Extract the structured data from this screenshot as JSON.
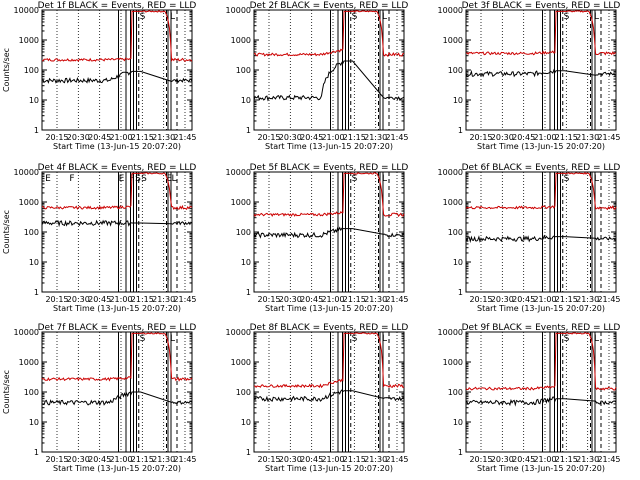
{
  "chart_data": [
    {
      "type": "line",
      "title": "Det 1f BLACK = Events, RED = LLD",
      "xlabel": "Start Time (13-Jun-15 20:07:20)",
      "ylabel": "Counts/sec",
      "y_scale": "log",
      "ylim": [
        1,
        10000
      ],
      "x_ticks": [
        "20:15",
        "20:30",
        "20:45",
        "21:00",
        "21:15",
        "21:30",
        "21:45"
      ],
      "y_ticks": [
        "1",
        "10",
        "100",
        "1000",
        "10000"
      ],
      "band_letters": [
        "S",
        "L"
      ],
      "series": [
        {
          "color": "#000000",
          "level": 45,
          "rise_level": 90
        },
        {
          "color": "#cc0000",
          "level": 220,
          "rise_level": 230
        }
      ]
    },
    {
      "type": "line",
      "title": "Det 2f BLACK = Events, RED = LLD",
      "xlabel": "Start Time (13-Jun-15 20:07:20)",
      "ylabel": "",
      "y_scale": "log",
      "ylim": [
        1,
        10000
      ],
      "x_ticks": [
        "20:15",
        "20:30",
        "20:45",
        "21:00",
        "21:15",
        "21:30",
        "21:45"
      ],
      "y_ticks": [
        "1",
        "10",
        "100",
        "1000",
        "10000"
      ],
      "band_letters": [
        "S",
        "L"
      ],
      "series": [
        {
          "color": "#000000",
          "level": 12,
          "rise_level": 200
        },
        {
          "color": "#cc0000",
          "level": 330,
          "rise_level": 480
        }
      ]
    },
    {
      "type": "line",
      "title": "Det 3f BLACK = Events, RED = LLD",
      "xlabel": "Start Time (13-Jun-15 20:07:20)",
      "ylabel": "",
      "y_scale": "log",
      "ylim": [
        1,
        10000
      ],
      "x_ticks": [
        "20:15",
        "20:30",
        "20:45",
        "21:00",
        "21:15",
        "21:30",
        "21:45"
      ],
      "y_ticks": [
        "1",
        "10",
        "100",
        "1000",
        "10000"
      ],
      "band_letters": [
        "S",
        "L"
      ],
      "series": [
        {
          "color": "#000000",
          "level": 75,
          "rise_level": 95
        },
        {
          "color": "#cc0000",
          "level": 360,
          "rise_level": 400
        }
      ]
    },
    {
      "type": "line",
      "title": "Det 4f BLACK = Events, RED = LLD",
      "xlabel": "Start Time (13-Jun-15 20:07:20)",
      "ylabel": "Counts/sec",
      "y_scale": "log",
      "ylim": [
        1,
        10000
      ],
      "x_ticks": [
        "20:15",
        "20:30",
        "20:45",
        "21:00",
        "21:15",
        "21:30",
        "21:45"
      ],
      "y_ticks": [
        "1",
        "10",
        "100",
        "1000",
        "10000"
      ],
      "band_letters": [
        "E",
        "F",
        "E",
        "F",
        "S",
        "S",
        "E",
        "L"
      ],
      "series": [
        {
          "color": "#000000",
          "level": 200,
          "rise_level": 200
        },
        {
          "color": "#cc0000",
          "level": 650,
          "rise_level": 700
        }
      ]
    },
    {
      "type": "line",
      "title": "Det 5f BLACK = Events, RED = LLD",
      "xlabel": "Start Time (13-Jun-15 20:07:20)",
      "ylabel": "",
      "y_scale": "log",
      "ylim": [
        1,
        10000
      ],
      "x_ticks": [
        "20:15",
        "20:30",
        "20:45",
        "21:00",
        "21:15",
        "21:30",
        "21:45"
      ],
      "y_ticks": [
        "1",
        "10",
        "100",
        "1000",
        "10000"
      ],
      "band_letters": [
        "S",
        "L"
      ],
      "series": [
        {
          "color": "#000000",
          "level": 80,
          "rise_level": 130
        },
        {
          "color": "#cc0000",
          "level": 380,
          "rise_level": 450
        }
      ]
    },
    {
      "type": "line",
      "title": "Det 6f BLACK = Events, RED = LLD",
      "xlabel": "Start Time (13-Jun-15 20:07:20)",
      "ylabel": "",
      "y_scale": "log",
      "ylim": [
        1,
        10000
      ],
      "x_ticks": [
        "20:15",
        "20:30",
        "20:45",
        "21:00",
        "21:15",
        "21:30",
        "21:45"
      ],
      "y_ticks": [
        "1",
        "10",
        "100",
        "1000",
        "10000"
      ],
      "band_letters": [
        "S",
        "L"
      ],
      "series": [
        {
          "color": "#000000",
          "level": 60,
          "rise_level": 70
        },
        {
          "color": "#cc0000",
          "level": 650,
          "rise_level": 700
        }
      ]
    },
    {
      "type": "line",
      "title": "Det 7f BLACK = Events, RED = LLD",
      "xlabel": "Start Time (13-Jun-15 20:07:20)",
      "ylabel": "Counts/sec",
      "y_scale": "log",
      "ylim": [
        1,
        10000
      ],
      "x_ticks": [
        "20:15",
        "20:30",
        "20:45",
        "21:00",
        "21:15",
        "21:30",
        "21:45"
      ],
      "y_ticks": [
        "1",
        "10",
        "100",
        "1000",
        "10000"
      ],
      "band_letters": [
        "S",
        "L"
      ],
      "series": [
        {
          "color": "#000000",
          "level": 45,
          "rise_level": 100
        },
        {
          "color": "#cc0000",
          "level": 270,
          "rise_level": 300
        }
      ]
    },
    {
      "type": "line",
      "title": "Det 8f BLACK = Events, RED = LLD",
      "xlabel": "Start Time (13-Jun-15 20:07:20)",
      "ylabel": "",
      "y_scale": "log",
      "ylim": [
        1,
        10000
      ],
      "x_ticks": [
        "20:15",
        "20:30",
        "20:45",
        "21:00",
        "21:15",
        "21:30",
        "21:45"
      ],
      "y_ticks": [
        "1",
        "10",
        "100",
        "1000",
        "10000"
      ],
      "band_letters": [
        "S",
        "L"
      ],
      "series": [
        {
          "color": "#000000",
          "level": 60,
          "rise_level": 110
        },
        {
          "color": "#cc0000",
          "level": 160,
          "rise_level": 260
        }
      ]
    },
    {
      "type": "line",
      "title": "Det 9f BLACK = Events, RED = LLD",
      "xlabel": "Start Time (13-Jun-15 20:07:20)",
      "ylabel": "",
      "y_scale": "log",
      "ylim": [
        1,
        10000
      ],
      "x_ticks": [
        "20:15",
        "20:30",
        "20:45",
        "21:00",
        "21:15",
        "21:30",
        "21:45"
      ],
      "y_ticks": [
        "1",
        "10",
        "100",
        "1000",
        "10000"
      ],
      "band_letters": [
        "S",
        "L"
      ],
      "series": [
        {
          "color": "#000000",
          "level": 45,
          "rise_level": 60
        },
        {
          "color": "#cc0000",
          "level": 130,
          "rise_level": 150
        }
      ]
    }
  ]
}
